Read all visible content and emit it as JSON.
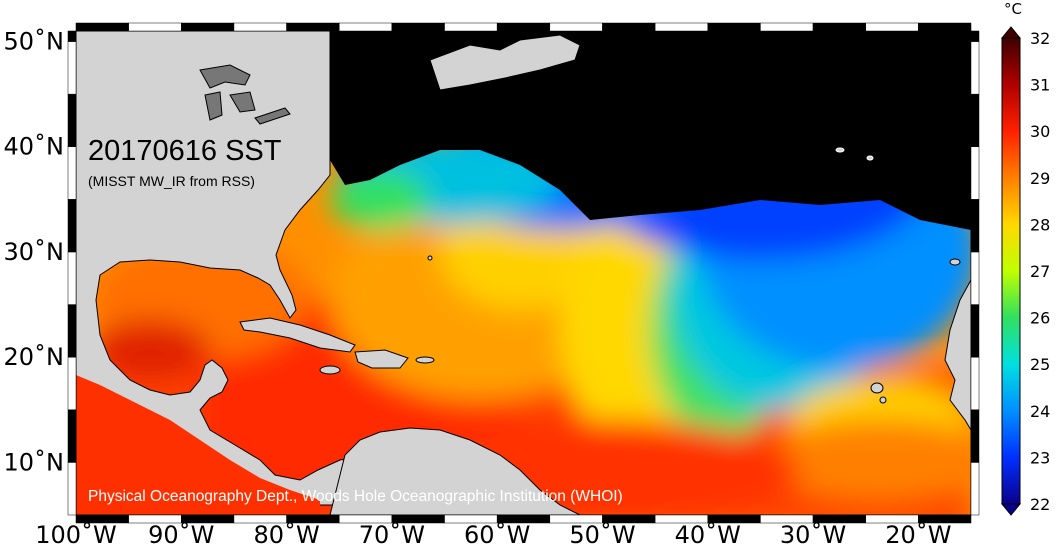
{
  "map": {
    "title": "20170616 SST",
    "subtitle": "(MISST MW_IR from RSS)",
    "credit": "Physical Oceanography Dept., Woods Hole Oceanographic Institution (WHOI)",
    "lon_range": [
      -100,
      -15
    ],
    "lat_range": [
      5,
      51
    ],
    "lon_ticks": [
      "100˚W",
      "90˚W",
      "80˚W",
      "70˚W",
      "60˚W",
      "50˚W",
      "40˚W",
      "30˚W",
      "20˚W"
    ],
    "lat_ticks": [
      "10˚N",
      "20˚N",
      "30˚N",
      "40˚N",
      "50˚N"
    ],
    "land_color": "#d3d3d3",
    "coast_color": "#000000"
  },
  "colorbar": {
    "unit": "°C",
    "min": 22,
    "max": 32,
    "tick_labels": [
      "22",
      "23",
      "24",
      "25",
      "26",
      "27",
      "28",
      "29",
      "30",
      "31",
      "32"
    ],
    "colors": [
      "#0a008c",
      "#0030ff",
      "#0090ff",
      "#00e0e0",
      "#30e060",
      "#c0ff00",
      "#ffd800",
      "#ff8000",
      "#ff2000",
      "#b00000",
      "#400000"
    ]
  }
}
